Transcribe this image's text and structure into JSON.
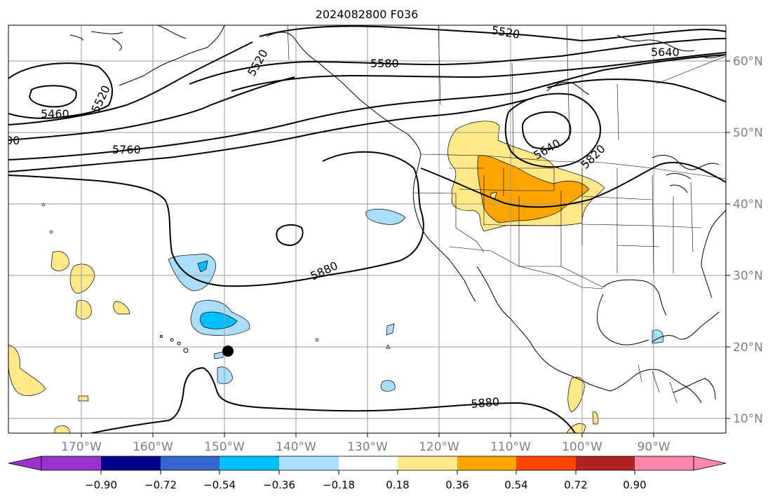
{
  "map": {
    "title": "2024082800 F036",
    "lon_labels": [
      "170°W",
      "160°W",
      "150°W",
      "140°W",
      "130°W",
      "120°W",
      "110°W",
      "100°W",
      "90°W"
    ],
    "lat_labels": [
      "60°N",
      "50°N",
      "40°N",
      "30°N",
      "20°N",
      "10°N"
    ],
    "contour_labels": [
      "5520",
      "5520",
      "5520",
      "5460",
      "5580",
      "5640",
      "5640",
      "5760",
      "5820",
      "5880",
      "5880",
      "00"
    ],
    "colorbar": {
      "tick_labels": [
        "−0.90",
        "−0.72",
        "−0.54",
        "−0.36",
        "−0.18",
        "0.18",
        "0.36",
        "0.54",
        "0.72",
        "0.90"
      ],
      "colors": [
        "#9933cc",
        "#00008b",
        "#3366cc",
        "#00bfff",
        "#aadeff",
        "#ffffff",
        "#ffe98a",
        "#ffa500",
        "#ff4500",
        "#b22222",
        "#ff88aa"
      ]
    }
  }
}
